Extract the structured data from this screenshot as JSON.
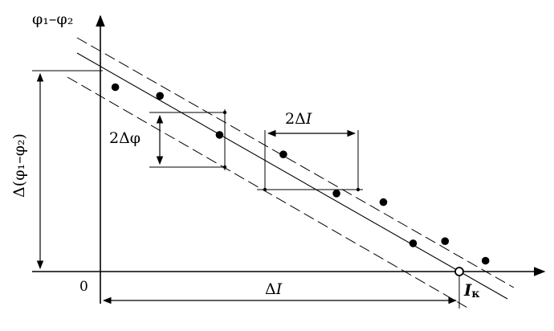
{
  "labels": {
    "y_axis": "φ₁–φ₂",
    "origin": "0",
    "vertical_span": "Δ(φ₁–φ₂)",
    "phase_error": "2Δφ",
    "current_error_sym": "2Δ",
    "current_error_var": "I",
    "horizontal_span_sym": "Δ",
    "horizontal_span_var": "I",
    "intercept_var": "I",
    "intercept_sub": "к"
  },
  "points": [
    {
      "x": 0.7,
      "y": 0.85
    },
    {
      "x": 2.8,
      "y": 0.81
    },
    {
      "x": 5.6,
      "y": 0.63
    },
    {
      "x": 8.6,
      "y": 0.54
    },
    {
      "x": 11.1,
      "y": 0.36
    },
    {
      "x": 13.3,
      "y": 0.32
    },
    {
      "x": 14.7,
      "y": 0.13
    },
    {
      "x": 16.2,
      "y": 0.14
    },
    {
      "x": 18.1,
      "y": 0.05
    }
  ],
  "colors": {
    "ink": "#000000",
    "background": "#ffffff"
  }
}
